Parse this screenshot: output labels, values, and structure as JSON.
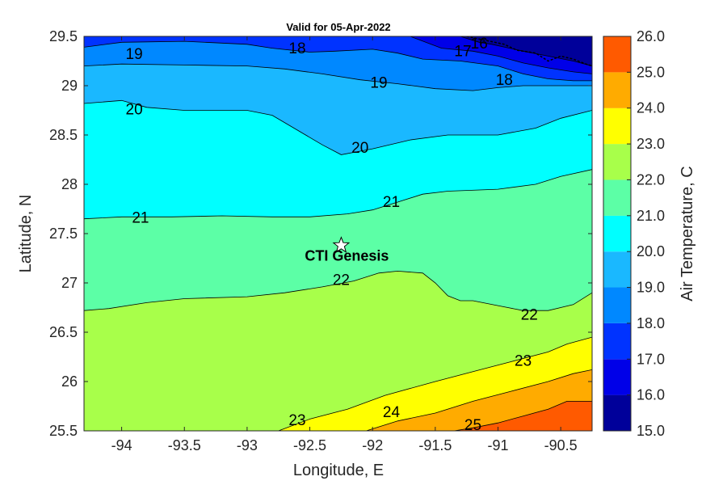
{
  "chart_data": {
    "type": "heatmap",
    "title": "Valid for 05-Apr-2022",
    "xlabel": "Longitude, E",
    "ylabel": "Latitude, N",
    "xlim": [
      -94.3,
      -90.25
    ],
    "ylim": [
      25.5,
      29.5
    ],
    "xticks": [
      "-94",
      "-93.5",
      "-93",
      "-92.5",
      "-92",
      "-91.5",
      "-91",
      "-90.5"
    ],
    "xtick_values": [
      -94,
      -93.5,
      -93,
      -92.5,
      -92,
      -91.5,
      -91,
      -90.5
    ],
    "yticks": [
      "25.5",
      "26",
      "26.5",
      "27",
      "27.5",
      "28",
      "28.5",
      "29",
      "29.5"
    ],
    "ytick_values": [
      25.5,
      26,
      26.5,
      27,
      27.5,
      28,
      28.5,
      29,
      29.5
    ],
    "colorbar": {
      "label": "Air Temperature, C",
      "tick_labels": [
        "15.0",
        "16.0",
        "17.0",
        "18.0",
        "19.0",
        "20.0",
        "21.0",
        "22.0",
        "23.0",
        "24.0",
        "25.0",
        "26.0"
      ],
      "tick_values": [
        15,
        16,
        17,
        18,
        19,
        20,
        21,
        22,
        23,
        24,
        25,
        26
      ],
      "colors": [
        "#00009a",
        "#0000e8",
        "#0033ff",
        "#0088ff",
        "#1ab8ff",
        "#00ffff",
        "#5cffa6",
        "#a8ff4a",
        "#ffff00",
        "#ffab00",
        "#ff5a00",
        "#ff0000"
      ]
    },
    "contours": [
      {
        "level": 16,
        "label": "16",
        "points": [
          [
            -91.3,
            29.5
          ],
          [
            -91.15,
            29.44
          ],
          [
            -91.05,
            29.42
          ],
          [
            -90.8,
            29.35
          ],
          [
            -90.6,
            29.3
          ],
          [
            -90.4,
            29.25
          ],
          [
            -90.25,
            29.2
          ]
        ]
      },
      {
        "level": 17,
        "label": "17",
        "points": [
          [
            -91.7,
            29.5
          ],
          [
            -91.45,
            29.38
          ],
          [
            -91.2,
            29.35
          ],
          [
            -91.0,
            29.3
          ],
          [
            -90.8,
            29.23
          ],
          [
            -90.6,
            29.18
          ],
          [
            -90.4,
            29.14
          ],
          [
            -90.25,
            29.12
          ]
        ]
      },
      {
        "level": 18,
        "label": "18",
        "points": [
          [
            -94.3,
            29.39
          ],
          [
            -94.0,
            29.44
          ],
          [
            -93.5,
            29.45
          ],
          [
            -93.0,
            29.42
          ],
          [
            -92.8,
            29.38
          ],
          [
            -92.5,
            29.34
          ],
          [
            -92.3,
            29.35
          ],
          [
            -92.0,
            29.37
          ],
          [
            -91.8,
            29.33
          ],
          [
            -91.6,
            29.27
          ],
          [
            -91.3,
            29.25
          ],
          [
            -91.0,
            29.2
          ],
          [
            -90.8,
            29.12
          ],
          [
            -90.6,
            29.07
          ],
          [
            -90.4,
            29.05
          ],
          [
            -90.25,
            29.05
          ]
        ]
      },
      {
        "level": 19,
        "label": "19",
        "points": [
          [
            -94.3,
            29.2
          ],
          [
            -94.0,
            29.22
          ],
          [
            -93.5,
            29.21
          ],
          [
            -93.0,
            29.2
          ],
          [
            -92.7,
            29.17
          ],
          [
            -92.4,
            29.12
          ],
          [
            -92.1,
            29.06
          ],
          [
            -91.8,
            29.02
          ],
          [
            -91.5,
            28.97
          ],
          [
            -91.2,
            28.95
          ],
          [
            -91.0,
            28.98
          ],
          [
            -90.8,
            29.0
          ],
          [
            -90.6,
            29.0
          ],
          [
            -90.25,
            29.0
          ]
        ]
      },
      {
        "level": 20,
        "label": "20",
        "points": [
          [
            -94.3,
            28.82
          ],
          [
            -94.0,
            28.85
          ],
          [
            -93.8,
            28.78
          ],
          [
            -93.5,
            28.75
          ],
          [
            -93.0,
            28.75
          ],
          [
            -92.8,
            28.7
          ],
          [
            -92.6,
            28.55
          ],
          [
            -92.4,
            28.4
          ],
          [
            -92.25,
            28.3
          ],
          [
            -92.0,
            28.36
          ],
          [
            -91.7,
            28.45
          ],
          [
            -91.4,
            28.5
          ],
          [
            -91.0,
            28.5
          ],
          [
            -90.7,
            28.57
          ],
          [
            -90.5,
            28.67
          ],
          [
            -90.25,
            28.75
          ]
        ]
      },
      {
        "level": 21,
        "label": "21",
        "points": [
          [
            -94.3,
            27.65
          ],
          [
            -94.0,
            27.67
          ],
          [
            -93.6,
            27.67
          ],
          [
            -93.2,
            27.68
          ],
          [
            -92.8,
            27.67
          ],
          [
            -92.5,
            27.67
          ],
          [
            -92.2,
            27.7
          ],
          [
            -92.0,
            27.74
          ],
          [
            -91.8,
            27.82
          ],
          [
            -91.6,
            27.9
          ],
          [
            -91.4,
            27.93
          ],
          [
            -91.0,
            27.95
          ],
          [
            -90.7,
            28.0
          ],
          [
            -90.5,
            28.08
          ],
          [
            -90.25,
            28.15
          ]
        ]
      },
      {
        "level": 22,
        "label": "22",
        "points": [
          [
            -94.3,
            26.72
          ],
          [
            -94.1,
            26.74
          ],
          [
            -93.8,
            26.8
          ],
          [
            -93.5,
            26.84
          ],
          [
            -93.0,
            26.86
          ],
          [
            -92.7,
            26.9
          ],
          [
            -92.4,
            26.96
          ],
          [
            -92.15,
            27.02
          ],
          [
            -91.95,
            27.1
          ],
          [
            -91.8,
            27.12
          ],
          [
            -91.6,
            27.1
          ],
          [
            -91.5,
            27.0
          ],
          [
            -91.4,
            26.87
          ],
          [
            -91.3,
            26.82
          ],
          [
            -91.2,
            26.82
          ],
          [
            -91.0,
            26.77
          ],
          [
            -90.8,
            26.72
          ],
          [
            -90.6,
            26.72
          ],
          [
            -90.4,
            26.78
          ],
          [
            -90.25,
            26.9
          ]
        ]
      },
      {
        "level": 23,
        "label": "23",
        "points": [
          [
            -92.75,
            25.5
          ],
          [
            -92.5,
            25.62
          ],
          [
            -92.2,
            25.72
          ],
          [
            -91.9,
            25.86
          ],
          [
            -91.5,
            26.0
          ],
          [
            -91.2,
            26.1
          ],
          [
            -90.9,
            26.2
          ],
          [
            -90.6,
            26.3
          ],
          [
            -90.45,
            26.38
          ],
          [
            -90.25,
            26.45
          ]
        ]
      },
      {
        "level": 24,
        "label": "24",
        "points": [
          [
            -92.05,
            25.5
          ],
          [
            -91.8,
            25.6
          ],
          [
            -91.5,
            25.68
          ],
          [
            -91.2,
            25.8
          ],
          [
            -90.9,
            25.9
          ],
          [
            -90.6,
            26.0
          ],
          [
            -90.4,
            26.08
          ],
          [
            -90.25,
            26.12
          ]
        ]
      },
      {
        "level": 25,
        "label": "25",
        "points": [
          [
            -91.35,
            25.5
          ],
          [
            -91.2,
            25.53
          ],
          [
            -91.0,
            25.58
          ],
          [
            -90.8,
            25.65
          ],
          [
            -90.6,
            25.72
          ],
          [
            -90.45,
            25.8
          ],
          [
            -90.25,
            25.8
          ]
        ]
      }
    ],
    "contour_labels": [
      {
        "text": "19",
        "x": -93.9,
        "y": 29.31
      },
      {
        "text": "18",
        "x": -92.6,
        "y": 29.37
      },
      {
        "text": "16",
        "x": -91.15,
        "y": 29.42
      },
      {
        "text": "17",
        "x": -91.28,
        "y": 29.34
      },
      {
        "text": "18",
        "x": -90.95,
        "y": 29.05
      },
      {
        "text": "19",
        "x": -91.95,
        "y": 29.02
      },
      {
        "text": "20",
        "x": -93.9,
        "y": 28.75
      },
      {
        "text": "20",
        "x": -92.1,
        "y": 28.36
      },
      {
        "text": "21",
        "x": -93.85,
        "y": 27.65
      },
      {
        "text": "21",
        "x": -91.85,
        "y": 27.81
      },
      {
        "text": "22",
        "x": -92.25,
        "y": 27.02
      },
      {
        "text": "22",
        "x": -90.75,
        "y": 26.67
      },
      {
        "text": "23",
        "x": -90.8,
        "y": 26.2
      },
      {
        "text": "23",
        "x": -92.6,
        "y": 25.6
      },
      {
        "text": "24",
        "x": -91.85,
        "y": 25.68
      },
      {
        "text": "25",
        "x": -91.2,
        "y": 25.55
      }
    ],
    "site": {
      "label": "CTI Genesis",
      "x": -92.25,
      "y": 27.38
    }
  }
}
